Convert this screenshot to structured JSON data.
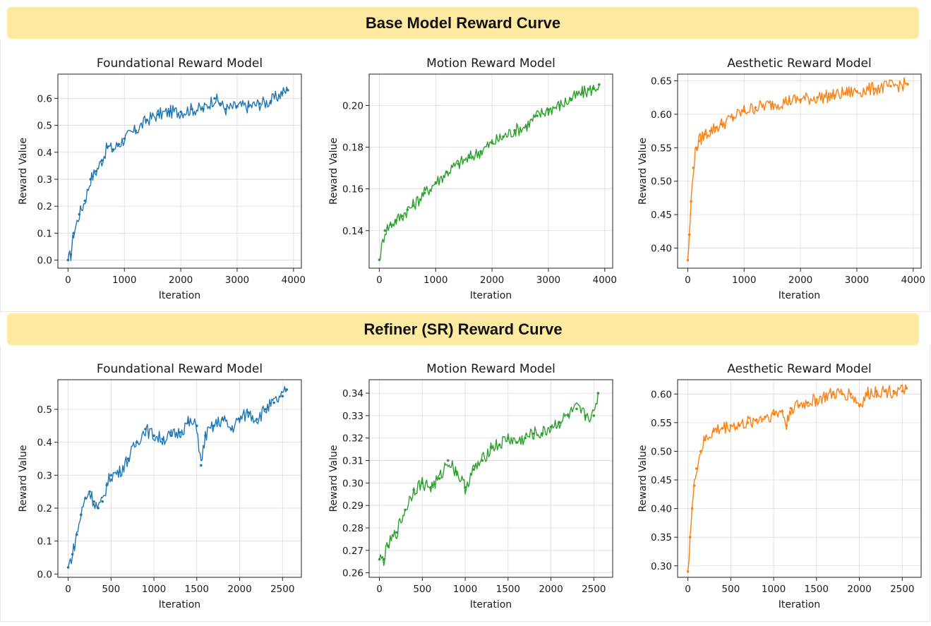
{
  "sections": {
    "base_title": "Base Model Reward Curve",
    "refiner_title": "Refiner (SR) Reward Curve"
  },
  "chart_data": [
    {
      "type": "line",
      "section": "Base Model Reward Curve",
      "title": "Foundational Reward Model",
      "xlabel": "Iteration",
      "ylabel": "Reward Value",
      "color": "#1f77b4",
      "xlim": [
        -180,
        4140
      ],
      "ylim": [
        -0.03,
        0.69
      ],
      "xticks": [
        0,
        1000,
        2000,
        3000,
        4000
      ],
      "yticks": [
        0.0,
        0.1,
        0.2,
        0.3,
        0.4,
        0.5,
        0.6
      ],
      "ytick_labels": [
        "0.0",
        "0.1",
        "0.2",
        "0.3",
        "0.4",
        "0.5",
        "0.6"
      ],
      "grid": true,
      "series": [
        {
          "x": [
            0,
            50,
            100,
            200,
            300,
            400,
            500,
            600,
            700,
            800,
            900,
            1000,
            1200,
            1400,
            1600,
            1800,
            2000,
            2200,
            2400,
            2600,
            2700,
            2800,
            3000,
            3200,
            3400,
            3600,
            3800,
            3900
          ],
          "y": [
            0.0,
            0.02,
            0.1,
            0.17,
            0.22,
            0.3,
            0.33,
            0.37,
            0.42,
            0.41,
            0.43,
            0.45,
            0.48,
            0.52,
            0.54,
            0.55,
            0.55,
            0.56,
            0.56,
            0.6,
            0.58,
            0.56,
            0.57,
            0.57,
            0.58,
            0.59,
            0.62,
            0.63
          ]
        }
      ]
    },
    {
      "type": "line",
      "section": "Base Model Reward Curve",
      "title": "Motion Reward Model",
      "xlabel": "Iteration",
      "ylabel": "Reward Value",
      "color": "#2ca02c",
      "xlim": [
        -180,
        4140
      ],
      "ylim": [
        0.122,
        0.215
      ],
      "xticks": [
        0,
        1000,
        2000,
        3000,
        4000
      ],
      "yticks": [
        0.14,
        0.16,
        0.18,
        0.2
      ],
      "ytick_labels": [
        "0.14",
        "0.16",
        "0.18",
        "0.20"
      ],
      "grid": true,
      "series": [
        {
          "x": [
            0,
            100,
            200,
            300,
            400,
            500,
            600,
            800,
            1000,
            1200,
            1400,
            1600,
            1800,
            2000,
            2200,
            2400,
            2600,
            2800,
            3000,
            3200,
            3400,
            3600,
            3800,
            3900
          ],
          "y": [
            0.126,
            0.14,
            0.143,
            0.145,
            0.147,
            0.15,
            0.152,
            0.158,
            0.163,
            0.168,
            0.172,
            0.175,
            0.178,
            0.182,
            0.185,
            0.188,
            0.19,
            0.195,
            0.198,
            0.2,
            0.203,
            0.206,
            0.208,
            0.21
          ]
        }
      ]
    },
    {
      "type": "line",
      "section": "Base Model Reward Curve",
      "title": "Aesthetic Reward Model",
      "xlabel": "Iteration",
      "ylabel": "Reward Value",
      "color": "#ff7f0e",
      "xlim": [
        -180,
        4140
      ],
      "ylim": [
        0.37,
        0.66
      ],
      "xticks": [
        0,
        1000,
        2000,
        3000,
        4000
      ],
      "yticks": [
        0.4,
        0.45,
        0.5,
        0.55,
        0.6,
        0.65
      ],
      "ytick_labels": [
        "0.40",
        "0.45",
        "0.50",
        "0.55",
        "0.60",
        "0.65"
      ],
      "grid": true,
      "series": [
        {
          "x": [
            0,
            30,
            60,
            100,
            150,
            200,
            300,
            400,
            500,
            600,
            800,
            1000,
            1200,
            1500,
            1800,
            2000,
            2300,
            2600,
            2800,
            3000,
            3300,
            3600,
            3900
          ],
          "y": [
            0.382,
            0.42,
            0.47,
            0.52,
            0.55,
            0.56,
            0.57,
            0.575,
            0.58,
            0.585,
            0.595,
            0.605,
            0.61,
            0.615,
            0.62,
            0.622,
            0.625,
            0.628,
            0.632,
            0.634,
            0.638,
            0.642,
            0.645
          ]
        }
      ]
    },
    {
      "type": "line",
      "section": "Refiner (SR) Reward Curve",
      "title": "Foundational Reward Model",
      "xlabel": "Iteration",
      "ylabel": "Reward Value",
      "color": "#1f77b4",
      "xlim": [
        -120,
        2720
      ],
      "ylim": [
        -0.01,
        0.59
      ],
      "xticks": [
        0,
        500,
        1000,
        1500,
        2000,
        2500
      ],
      "yticks": [
        0.0,
        0.1,
        0.2,
        0.3,
        0.4,
        0.5
      ],
      "ytick_labels": [
        "0.0",
        "0.1",
        "0.2",
        "0.3",
        "0.4",
        "0.5"
      ],
      "grid": true,
      "series": [
        {
          "x": [
            0,
            50,
            100,
            150,
            200,
            250,
            300,
            350,
            400,
            450,
            500,
            600,
            700,
            800,
            900,
            1000,
            1100,
            1200,
            1300,
            1400,
            1500,
            1550,
            1600,
            1700,
            1800,
            1900,
            2000,
            2100,
            2200,
            2300,
            2400,
            2500,
            2550
          ],
          "y": [
            0.02,
            0.06,
            0.12,
            0.18,
            0.23,
            0.25,
            0.22,
            0.2,
            0.22,
            0.27,
            0.3,
            0.31,
            0.35,
            0.4,
            0.44,
            0.42,
            0.41,
            0.42,
            0.43,
            0.46,
            0.45,
            0.33,
            0.42,
            0.45,
            0.47,
            0.44,
            0.47,
            0.49,
            0.47,
            0.5,
            0.52,
            0.54,
            0.56
          ]
        }
      ]
    },
    {
      "type": "line",
      "section": "Refiner (SR) Reward Curve",
      "title": "Motion Reward Model",
      "xlabel": "Iteration",
      "ylabel": "Reward Value",
      "color": "#2ca02c",
      "xlim": [
        -120,
        2720
      ],
      "ylim": [
        0.258,
        0.346
      ],
      "xticks": [
        0,
        500,
        1000,
        1500,
        2000,
        2500
      ],
      "yticks": [
        0.26,
        0.27,
        0.28,
        0.29,
        0.3,
        0.31,
        0.32,
        0.33,
        0.34
      ],
      "ytick_labels": [
        "0.26",
        "0.27",
        "0.28",
        "0.29",
        "0.30",
        "0.31",
        "0.32",
        "0.33",
        "0.34"
      ],
      "grid": true,
      "series": [
        {
          "x": [
            0,
            50,
            100,
            200,
            300,
            400,
            500,
            600,
            700,
            800,
            900,
            1000,
            1100,
            1200,
            1300,
            1400,
            1500,
            1600,
            1700,
            1800,
            1900,
            2000,
            2100,
            2200,
            2300,
            2400,
            2500,
            2550
          ],
          "y": [
            0.266,
            0.266,
            0.272,
            0.278,
            0.288,
            0.297,
            0.3,
            0.298,
            0.302,
            0.31,
            0.305,
            0.298,
            0.306,
            0.31,
            0.316,
            0.317,
            0.32,
            0.318,
            0.32,
            0.322,
            0.322,
            0.325,
            0.327,
            0.33,
            0.333,
            0.33,
            0.33,
            0.34
          ]
        }
      ]
    },
    {
      "type": "line",
      "section": "Refiner (SR) Reward Curve",
      "title": "Aesthetic Reward Model",
      "xlabel": "Iteration",
      "ylabel": "Reward Value",
      "color": "#ff7f0e",
      "xlim": [
        -120,
        2720
      ],
      "ylim": [
        0.28,
        0.625
      ],
      "xticks": [
        0,
        500,
        1000,
        1500,
        2000,
        2500
      ],
      "yticks": [
        0.3,
        0.35,
        0.4,
        0.45,
        0.5,
        0.55,
        0.6
      ],
      "ytick_labels": [
        "0.30",
        "0.35",
        "0.40",
        "0.45",
        "0.50",
        "0.55",
        "0.60"
      ],
      "grid": true,
      "series": [
        {
          "x": [
            0,
            25,
            50,
            75,
            100,
            150,
            200,
            300,
            400,
            500,
            600,
            700,
            800,
            900,
            1000,
            1100,
            1150,
            1200,
            1300,
            1400,
            1500,
            1600,
            1700,
            1800,
            1900,
            2000,
            2100,
            2200,
            2300,
            2400,
            2500,
            2550
          ],
          "y": [
            0.29,
            0.35,
            0.4,
            0.44,
            0.47,
            0.5,
            0.52,
            0.535,
            0.54,
            0.545,
            0.545,
            0.55,
            0.555,
            0.56,
            0.565,
            0.57,
            0.545,
            0.575,
            0.58,
            0.585,
            0.59,
            0.595,
            0.6,
            0.6,
            0.6,
            0.58,
            0.6,
            0.605,
            0.605,
            0.605,
            0.605,
            0.61
          ]
        }
      ]
    }
  ]
}
